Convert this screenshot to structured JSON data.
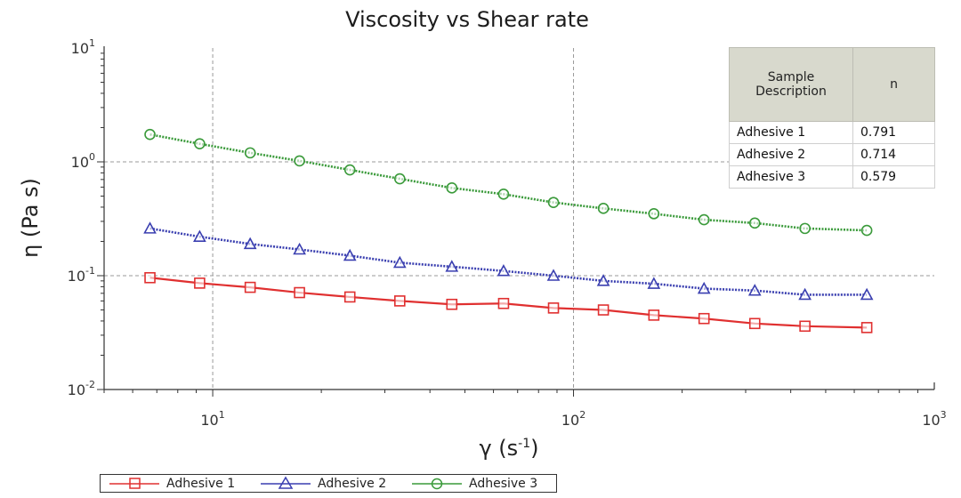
{
  "chart_data": {
    "type": "line",
    "title": "Viscosity vs Shear rate",
    "xlabel": "γ (s⁻¹)",
    "ylabel": "η (Pa s)",
    "x_scale": "log",
    "y_scale": "log",
    "xlim": [
      5,
      1000
    ],
    "ylim": [
      0.01,
      10
    ],
    "x_ticks": [
      {
        "value": 10,
        "base": "10",
        "exp": "1"
      },
      {
        "value": 100,
        "base": "10",
        "exp": "2"
      },
      {
        "value": 1000,
        "base": "10",
        "exp": "3"
      }
    ],
    "y_ticks": [
      {
        "value": 10,
        "base": "10",
        "exp": "1"
      },
      {
        "value": 1,
        "base": "10",
        "exp": "0"
      },
      {
        "value": 0.1,
        "base": "10",
        "exp": "-1"
      },
      {
        "value": 0.01,
        "base": "10",
        "exp": "-2"
      }
    ],
    "grid": true,
    "x": [
      6.7,
      9.2,
      12.7,
      17.4,
      24,
      33,
      46,
      64,
      88,
      121,
      167,
      230,
      318,
      438,
      650
    ],
    "series": [
      {
        "name": "Adhesive 1",
        "color": "#e03030",
        "marker": "square",
        "values": [
          0.096,
          0.086,
          0.079,
          0.071,
          0.065,
          0.06,
          0.056,
          0.057,
          0.052,
          0.05,
          0.045,
          0.042,
          0.038,
          0.036,
          0.035
        ]
      },
      {
        "name": "Adhesive 2",
        "color": "#3a3fb0",
        "marker": "triangle",
        "values": [
          0.26,
          0.22,
          0.19,
          0.17,
          0.15,
          0.13,
          0.12,
          0.11,
          0.1,
          0.09,
          0.085,
          0.077,
          0.074,
          0.068,
          0.068
        ]
      },
      {
        "name": "Adhesive 3",
        "color": "#3a9a3a",
        "marker": "circle",
        "values": [
          1.74,
          1.44,
          1.2,
          1.02,
          0.85,
          0.71,
          0.59,
          0.52,
          0.44,
          0.39,
          0.35,
          0.31,
          0.29,
          0.26,
          0.25
        ]
      }
    ],
    "legend_position": "bottom"
  },
  "table": {
    "headers": [
      "Sample Description",
      "n"
    ],
    "rows": [
      {
        "sample": "Adhesive 1",
        "n": "0.791"
      },
      {
        "sample": "Adhesive 2",
        "n": "0.714"
      },
      {
        "sample": "Adhesive 3",
        "n": "0.579"
      }
    ]
  }
}
